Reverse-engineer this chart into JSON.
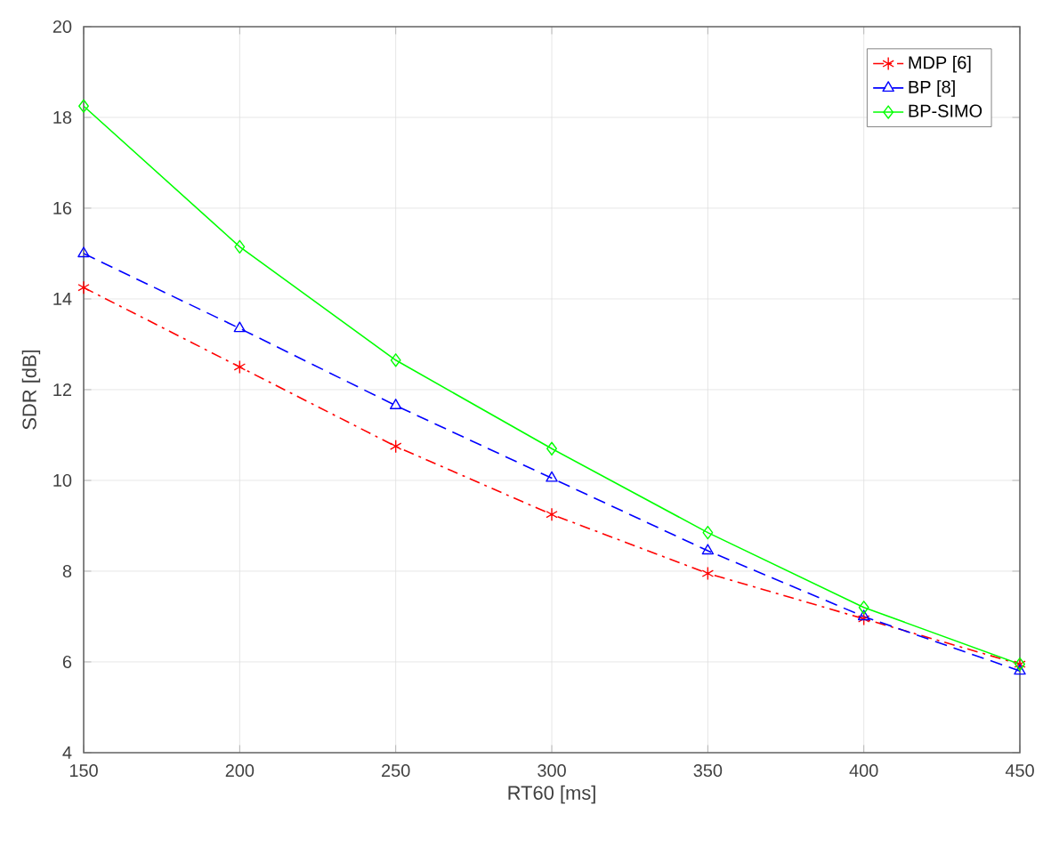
{
  "chart_data": {
    "type": "line",
    "xlabel": "RT60 [ms]",
    "ylabel": "SDR [dB]",
    "x": [
      150,
      200,
      250,
      300,
      350,
      400,
      450
    ],
    "series": [
      {
        "name": "MDP [6]",
        "color": "#ff0000",
        "marker": "cross",
        "line_style": "dashdot",
        "values": [
          14.25,
          12.5,
          10.75,
          9.25,
          7.95,
          6.95,
          5.95
        ]
      },
      {
        "name": "BP [8]",
        "color": "#0000ff",
        "marker": "triangle",
        "line_style": "dashed",
        "values": [
          15.0,
          13.35,
          11.65,
          10.05,
          8.45,
          7.0,
          5.8
        ]
      },
      {
        "name": "BP-SIMO",
        "color": "#00ff00",
        "marker": "diamond",
        "line_style": "solid",
        "values": [
          18.25,
          15.15,
          12.65,
          10.7,
          8.85,
          7.2,
          5.95
        ]
      }
    ],
    "xlim": [
      150,
      450
    ],
    "ylim": [
      4,
      20
    ],
    "xticks": [
      150,
      200,
      250,
      300,
      350,
      400,
      450
    ],
    "yticks": [
      4,
      6,
      8,
      10,
      12,
      14,
      16,
      18,
      20
    ],
    "grid": true,
    "legend": "top right"
  }
}
